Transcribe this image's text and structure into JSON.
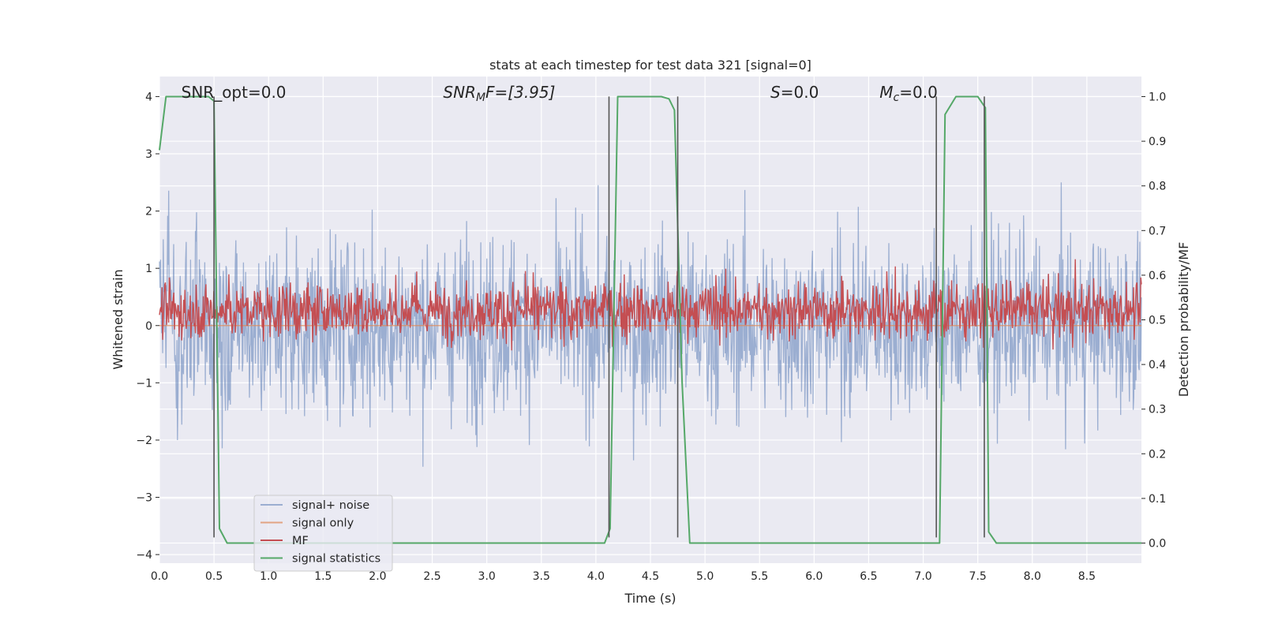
{
  "chart_data": {
    "type": "line",
    "title": "stats at each timestep for test data 321 [signal=0]",
    "xlabel": "Time (s)",
    "ylabel": "Whitened strain",
    "y2label": "Detection probability/MF",
    "xlim": [
      0.0,
      9.0
    ],
    "ylim": [
      -4.15,
      4.35
    ],
    "y2lim": [
      -0.045,
      1.045
    ],
    "x_ticks": [
      "0.0",
      "0.5",
      "1.0",
      "1.5",
      "2.0",
      "2.5",
      "3.0",
      "3.5",
      "4.0",
      "4.5",
      "5.0",
      "5.5",
      "6.0",
      "6.5",
      "7.0",
      "7.5",
      "8.0",
      "8.5"
    ],
    "y_ticks": [
      "4",
      "3",
      "2",
      "1",
      "0",
      "−1",
      "−2",
      "−3",
      "−4"
    ],
    "y2_ticks": [
      "1.0",
      "0.9",
      "0.8",
      "0.7",
      "0.6",
      "0.5",
      "0.4",
      "0.3",
      "0.2",
      "0.1",
      "0.0"
    ],
    "grid": true,
    "legend_position": "lower-left",
    "annotations": [
      {
        "name": "snr-opt",
        "x": 0.2,
        "text": "SNR_opt=0.0"
      },
      {
        "name": "snr-mf",
        "x": 2.6,
        "text": "SNR",
        "sub": "M",
        "tail": "F=[3.95]",
        "italic": true
      },
      {
        "name": "s-value",
        "x": 5.6,
        "text": "S",
        "tail": "=0.0",
        "italic": true
      },
      {
        "name": "mc-value",
        "x": 6.6,
        "text": "M",
        "sub": "c",
        "tail": "=0.0",
        "italic": true
      }
    ],
    "series": [
      {
        "name": "signal+ noise",
        "color": "#4c72b0",
        "opacity": 0.5,
        "axis": "left",
        "kind": "noise",
        "amplitude": 1.0
      },
      {
        "name": "signal only",
        "color": "#dd8452",
        "opacity": 0.7,
        "axis": "left",
        "kind": "constant",
        "value": 0.0
      },
      {
        "name": "MF",
        "color": "#c44e52",
        "opacity": 1.0,
        "axis": "right",
        "kind": "noise",
        "center": 0.52,
        "amplitude": 0.04
      },
      {
        "name": "signal statistics",
        "color": "#55a868",
        "opacity": 1.0,
        "axis": "right",
        "kind": "line",
        "x": [
          0.0,
          0.06,
          0.45,
          0.5,
          0.55,
          0.62,
          4.0,
          4.08,
          4.13,
          4.2,
          4.6,
          4.67,
          4.72,
          4.79,
          4.86,
          4.93,
          7.1,
          7.15,
          7.2,
          7.3,
          7.5,
          7.57,
          7.6,
          7.67,
          9.0
        ],
        "y": [
          0.88,
          1.0,
          1.0,
          0.99,
          0.0325,
          0.0,
          0.0,
          0.0,
          0.0325,
          1.0,
          1.0,
          0.995,
          0.97,
          0.36,
          0.0,
          0.0,
          0.0,
          0.0,
          0.96,
          1.0,
          1.0,
          0.975,
          0.025,
          0.0,
          0.0
        ]
      }
    ],
    "vertical_markers": [
      0.5,
      4.12,
      4.75,
      7.12,
      7.56
    ],
    "vertical_marker_range": [
      -3.7,
      4.0
    ]
  }
}
